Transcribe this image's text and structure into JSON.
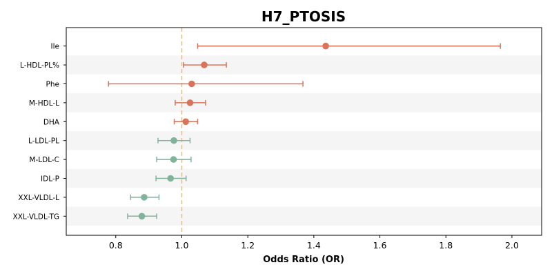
{
  "chart_data": {
    "type": "forest",
    "title": "H7_PTOSIS",
    "xlabel": "Odds Ratio (OR)",
    "xlim": [
      0.65,
      2.09
    ],
    "xticks": [
      "0.8",
      "1.0",
      "1.2",
      "1.4",
      "1.6",
      "1.8",
      "2.0"
    ],
    "reference_line": 1.0,
    "reference_color": "#f0c070",
    "colors": {
      "positive": "#d9735a",
      "negative": "#7fb39a"
    },
    "band_color": "#f5f5f5",
    "rows": [
      {
        "label": "Ile",
        "or": 1.436,
        "lo": 1.048,
        "hi": 1.965,
        "group": "positive"
      },
      {
        "label": "L-HDL-PL%",
        "or": 1.068,
        "lo": 1.005,
        "hi": 1.135,
        "group": "positive"
      },
      {
        "label": "Phe",
        "or": 1.03,
        "lo": 0.778,
        "hi": 1.367,
        "group": "positive"
      },
      {
        "label": "M-HDL-L",
        "or": 1.025,
        "lo": 0.98,
        "hi": 1.072,
        "group": "positive"
      },
      {
        "label": "DHA",
        "or": 1.012,
        "lo": 0.977,
        "hi": 1.048,
        "group": "positive"
      },
      {
        "label": "L-LDL-PL",
        "or": 0.976,
        "lo": 0.928,
        "hi": 1.025,
        "group": "negative"
      },
      {
        "label": "M-LDL-C",
        "or": 0.975,
        "lo": 0.924,
        "hi": 1.028,
        "group": "negative"
      },
      {
        "label": "IDL-P",
        "or": 0.966,
        "lo": 0.922,
        "hi": 1.013,
        "group": "negative"
      },
      {
        "label": "XXL-VLDL-L",
        "or": 0.886,
        "lo": 0.845,
        "hi": 0.931,
        "group": "negative"
      },
      {
        "label": "XXL-VLDL-TG",
        "or": 0.879,
        "lo": 0.836,
        "hi": 0.924,
        "group": "negative"
      }
    ]
  }
}
